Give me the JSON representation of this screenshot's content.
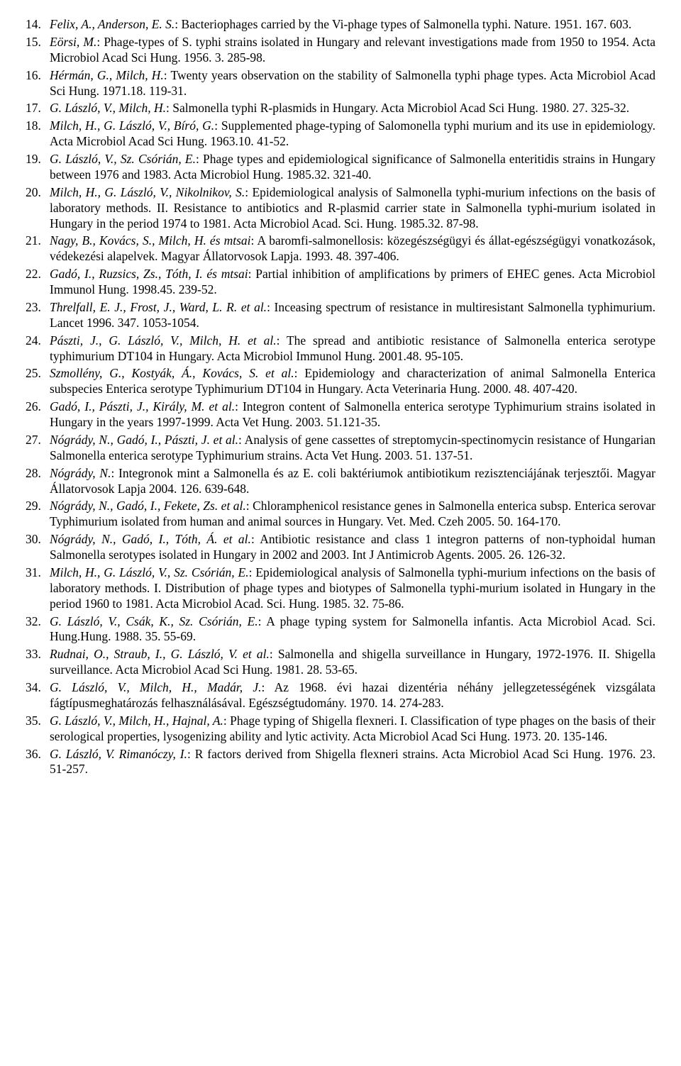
{
  "start_number": 14,
  "references": [
    {
      "authors": "Felix, A., Anderson, E. S.",
      "rest": ": Bacteriophages carried by the Vi-phage types of Salmonella typhi. Nature. 1951. 167. 603."
    },
    {
      "authors": "Eörsi, M.",
      "rest": ": Phage-types of S. typhi strains isolated in Hungary and relevant investigations made from 1950 to 1954. Acta Microbiol Acad Sci Hung. 1956. 3. 285-98."
    },
    {
      "authors": "Hérmán, G., Milch, H.",
      "rest": ": Twenty years observation on the stability of Salmonella typhi phage types. Acta Microbiol Acad Sci Hung. 1971.18. 119-31."
    },
    {
      "authors": "G. László, V., Milch, H.",
      "rest": ": Salmonella typhi R-plasmids in Hungary. Acta Microbiol Acad Sci Hung. 1980. 27. 325-32."
    },
    {
      "authors": "Milch, H., G. László, V., Bíró, G.",
      "rest": ": Supplemented phage-typing of Salomonella typhi murium and its use in epidemiology. Acta Microbiol Acad Sci Hung. 1963.10. 41-52."
    },
    {
      "authors": "G. László, V., Sz. Csórián, E.",
      "rest": ": Phage types and epidemiological significance of Salmonella enteritidis strains in Hungary between 1976 and 1983. Acta Microbiol Hung. 1985.32. 321-40."
    },
    {
      "authors": "Milch, H., G. László, V., Nikolnikov, S.",
      "rest": ": Epidemiological analysis of Salmonella typhi-murium infections on the basis of laboratory methods. II. Resistance to antibiotics and R-plasmid carrier state in Salmonella typhi-murium isolated in Hungary in the period 1974 to 1981. Acta Microbiol Acad. Sci. Hung. 1985.32. 87-98."
    },
    {
      "authors": "Nagy, B., Kovács, S., Milch, H. és mtsai",
      "rest": ": A baromfi-salmonellosis: közegészségügyi és állat-egészségügyi vonatkozások, védekezési alapelvek. Magyar Állatorvosok Lapja. 1993. 48. 397-406."
    },
    {
      "authors": "Gadó, I., Ruzsics, Zs., Tóth, I. és mtsai",
      "rest": ": Partial inhibition of amplifications by primers of EHEC genes. Acta Microbiol Immunol Hung. 1998.45. 239-52."
    },
    {
      "authors": "Threlfall, E. J., Frost, J., Ward, L. R. et al.",
      "rest": ": Inceasing spectrum of resistance in multiresistant Salmonella typhimurium. Lancet 1996. 347. 1053-1054."
    },
    {
      "authors": "Pászti, J., G. László, V., Milch, H. et al.",
      "rest": ": The spread and antibiotic resistance of Salmonella enterica serotype typhimurium DT104 in Hungary. Acta Microbiol Immunol Hung. 2001.48. 95-105."
    },
    {
      "authors": "Szmollény, G., Kostyák, Á., Kovács, S. et al.",
      "rest": ": Epidemiology and characterization of animal Salmonella Enterica subspecies Enterica serotype Typhimurium DT104 in Hungary. Acta Veterinaria Hung. 2000. 48. 407-420."
    },
    {
      "authors": "Gadó, I., Pászti, J., Király, M. et al.",
      "rest": ": Integron content of Salmonella enterica serotype Typhimurium strains isolated in Hungary in the years 1997-1999. Acta Vet Hung. 2003. 51.121-35."
    },
    {
      "authors": "Nógrády, N., Gadó, I., Pászti, J. et al.",
      "rest": ": Analysis of gene cassettes of streptomycin-spectinomycin resistance of Hungarian Salmonella enterica serotype Typhimurium strains. Acta Vet Hung. 2003. 51. 137-51."
    },
    {
      "authors": "Nógrády, N.",
      "rest": ": Integronok mint a Salmonella és az E. coli baktériumok antibiotikum rezisztenciájának terjesztői. Magyar Állatorvosok Lapja 2004. 126. 639-648."
    },
    {
      "authors": "Nógrády, N., Gadó, I., Fekete, Zs. et al.",
      "rest": ": Chloramphenicol resistance genes in Salmonella enterica subsp. Enterica serovar Typhimurium isolated from human and animal sources in Hungary. Vet. Med. Czeh 2005. 50. 164-170."
    },
    {
      "authors": "Nógrády, N., Gadó, I., Tóth, Á. et al.",
      "rest": ": Antibiotic resistance and class 1 integron patterns of non-typhoidal human Salmonella serotypes isolated in Hungary in 2002 and 2003. Int J Antimicrob Agents. 2005. 26. 126-32."
    },
    {
      "authors": "Milch, H., G. László, V., Sz. Csórián, E.",
      "rest": ": Epidemiological analysis of Salmonella typhi-murium infections on the basis of laboratory methods. I. Distribution of phage types and biotypes of Salmonella typhi-murium isolated in Hungary in the period 1960 to 1981. Acta Microbiol Acad. Sci. Hung. 1985. 32. 75-86."
    },
    {
      "authors": "G. László, V., Csák, K., Sz. Csórián, E.",
      "rest": ": A phage typing system for Salmonella infantis. Acta Microbiol Acad. Sci. Hung.Hung. 1988. 35. 55-69."
    },
    {
      "authors": "Rudnai, O., Straub, I., G. László, V. et al.",
      "rest": ": Salmonella and shigella surveillance in Hungary, 1972-1976. II. Shigella surveillance. Acta Microbiol Acad Sci Hung. 1981. 28. 53-65."
    },
    {
      "authors": "G. László, V., Milch, H., Madár, J.",
      "rest": ": Az 1968. évi hazai dizentéria néhány jellegzetességének vizsgálata fágtípusmeghatározás felhasználásával. Egészségtudomány. 1970. 14. 274-283."
    },
    {
      "authors": "G. László, V., Milch, H., Hajnal, A.",
      "rest": ": Phage typing of Shigella flexneri. I. Classification of type phages on the basis of their serological properties, lysogenizing ability and lytic activity. Acta Microbiol Acad Sci Hung. 1973. 20. 135-146."
    },
    {
      "authors": "G. László, V. Rimanóczy, I.",
      "rest": ": R factors derived from Shigella flexneri strains. Acta Microbiol Acad Sci Hung. 1976. 23. 51-257."
    }
  ]
}
